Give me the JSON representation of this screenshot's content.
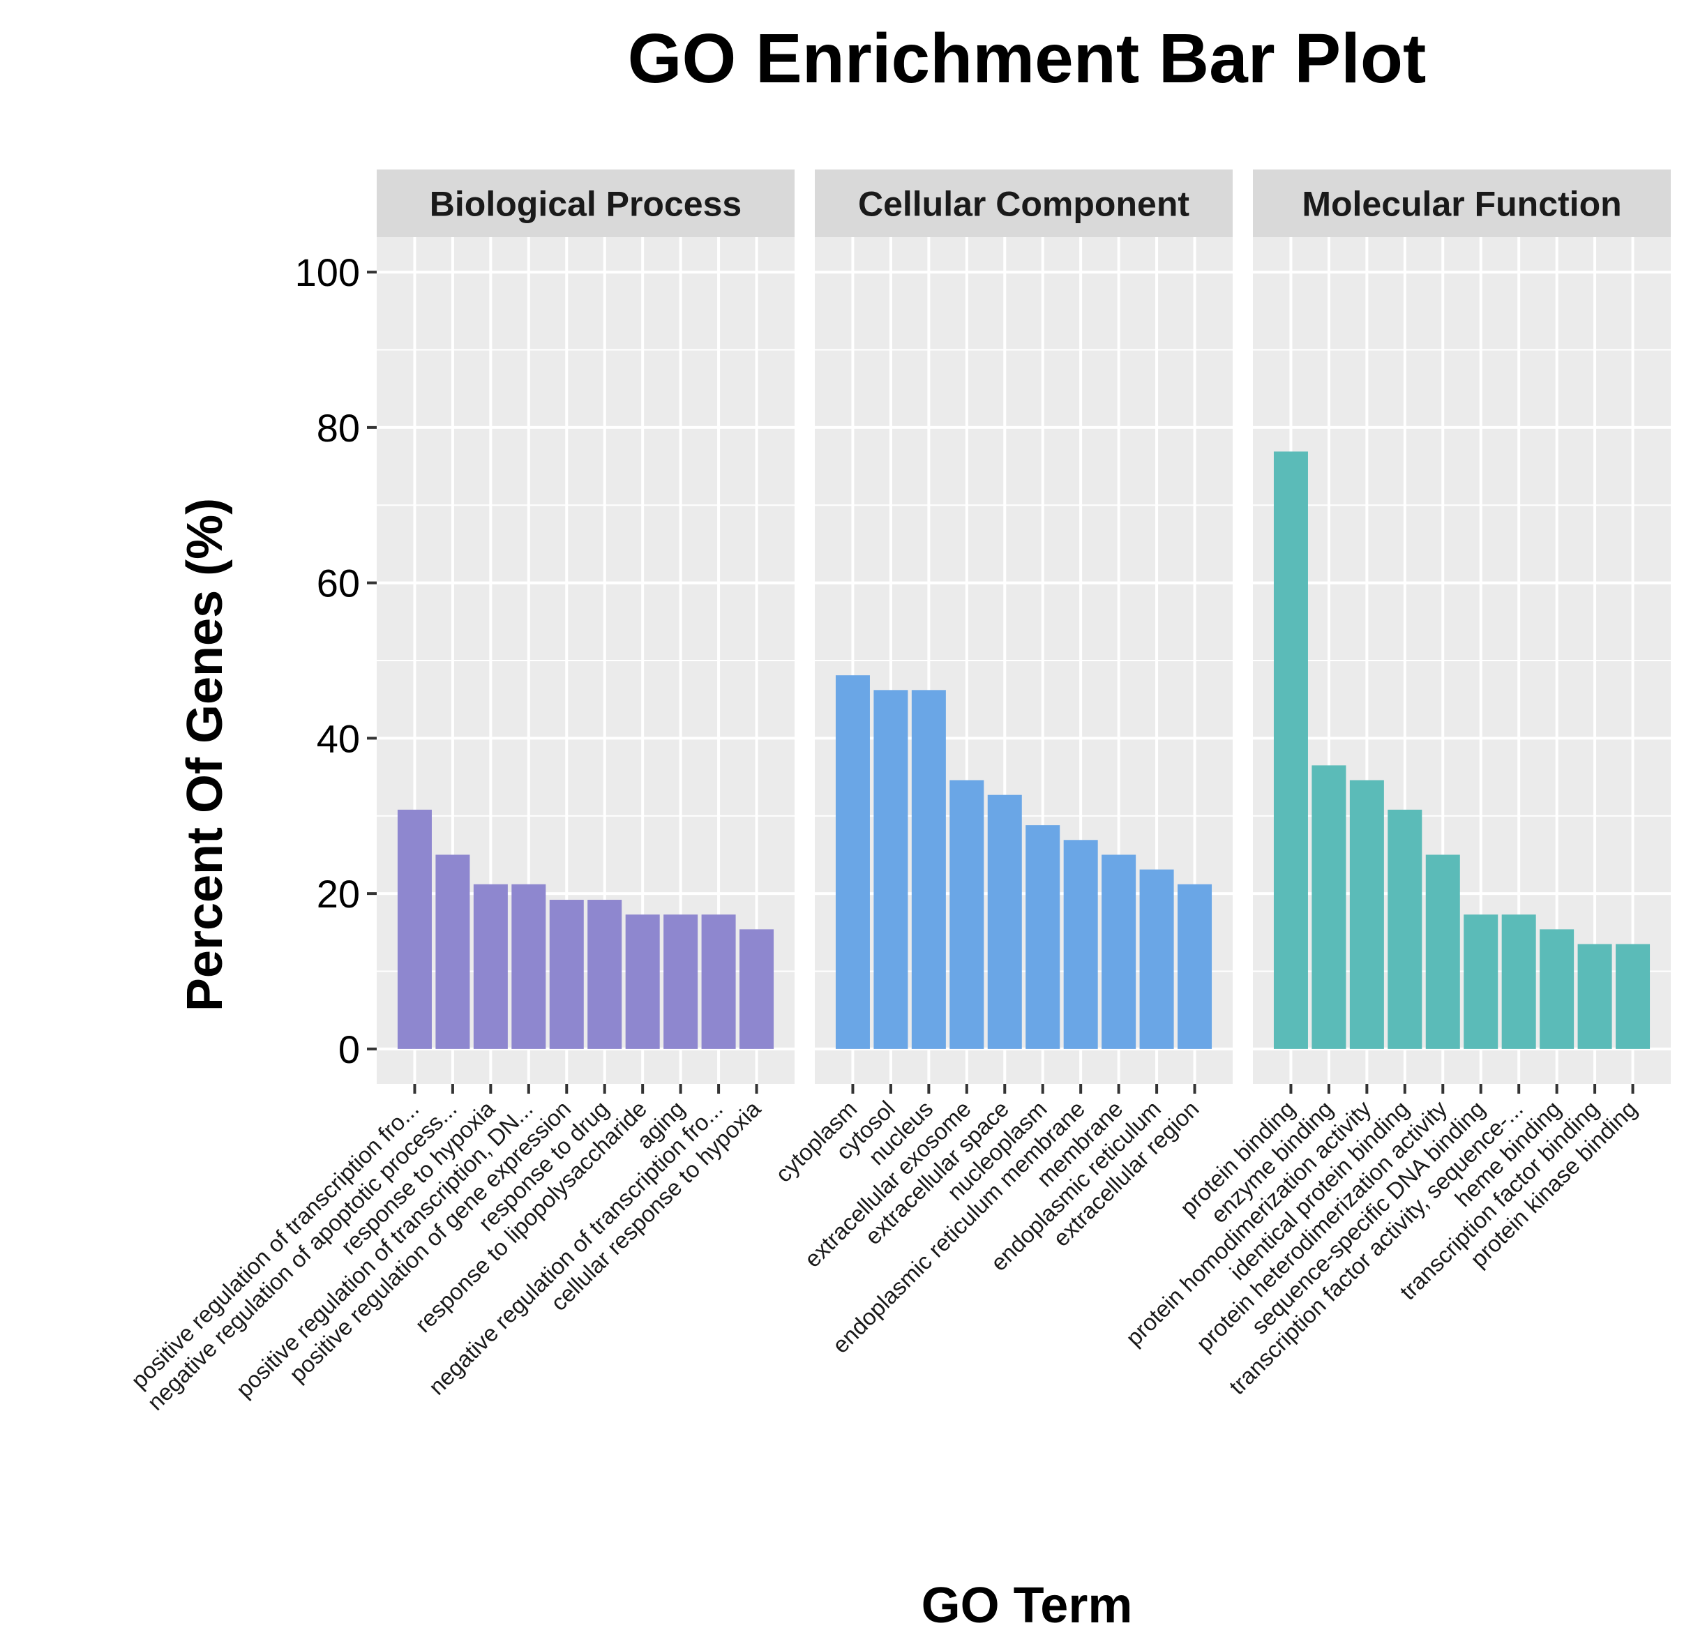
{
  "chart_data": {
    "type": "bar",
    "title": "GO Enrichment Bar Plot",
    "xlabel": "GO Term",
    "ylabel": "Percent Of Genes (%)",
    "ylim": [
      0,
      100
    ],
    "yticks": [
      "0",
      "20",
      "40",
      "60",
      "80",
      "100"
    ],
    "grid": true,
    "legend": "none",
    "facets": [
      {
        "name": "Biological Process",
        "color": "#8e87cf",
        "categories": [
          "positive regulation of transcription fro...",
          "negative regulation of apoptotic process...",
          "response to hypoxia",
          "positive regulation of transcription, DN...",
          "positive regulation of gene expression",
          "response to drug",
          "response to lipopolysaccharide",
          "aging",
          "negative regulation of transcription fro...",
          "cellular response to hypoxia"
        ],
        "values": [
          30.8,
          25.0,
          21.2,
          21.2,
          19.2,
          19.2,
          17.3,
          17.3,
          17.3,
          15.4
        ]
      },
      {
        "name": "Cellular Component",
        "color": "#6aa6e6",
        "categories": [
          "cytoplasm",
          "cytosol",
          "nucleus",
          "extracellular exosome",
          "extracellular space",
          "nucleoplasm",
          "endoplasmic reticulum membrane",
          "membrane",
          "endoplasmic reticulum",
          "extracellular region"
        ],
        "values": [
          48.1,
          46.2,
          46.2,
          34.6,
          32.7,
          28.8,
          26.9,
          25.0,
          23.1,
          21.2
        ]
      },
      {
        "name": "Molecular Function",
        "color": "#5bbbb8",
        "categories": [
          "protein binding",
          "enzyme binding",
          "protein homodimerization activity",
          "identical protein binding",
          "protein heterodimerization activity",
          "sequence-specific DNA binding",
          "transcription factor activity, sequence-...",
          "heme binding",
          "transcription factor binding",
          "protein kinase binding"
        ],
        "values": [
          76.9,
          36.5,
          34.6,
          30.8,
          25.0,
          17.3,
          17.3,
          15.4,
          13.5,
          13.5
        ]
      }
    ]
  }
}
